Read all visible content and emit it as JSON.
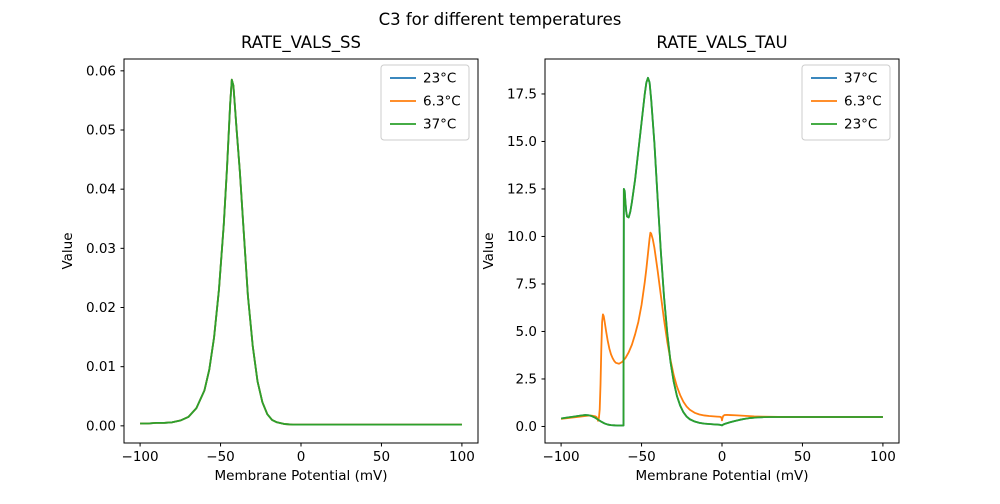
{
  "figure_title": "C3 for different temperatures",
  "colors": {
    "line_blue": "#1f77b4",
    "line_orange": "#ff7f0e",
    "line_green": "#2ca02c",
    "text": "#000000",
    "spine": "#000000",
    "legend_border": "#cccccc",
    "background": "#ffffff"
  },
  "chart_data": [
    {
      "type": "line",
      "title": "RATE_VALS_SS",
      "xlabel": "Membrane Potential (mV)",
      "ylabel": "Value",
      "xlim": [
        -110,
        110
      ],
      "ylim": [
        -0.0029,
        0.062
      ],
      "grid": false,
      "legend_position": "upper right",
      "xticks": [
        {
          "v": -100,
          "label": "−100"
        },
        {
          "v": -50,
          "label": "−50"
        },
        {
          "v": 0,
          "label": "0"
        },
        {
          "v": 50,
          "label": "50"
        },
        {
          "v": 100,
          "label": "100"
        }
      ],
      "yticks": [
        {
          "v": 0.0,
          "label": "0.00"
        },
        {
          "v": 0.01,
          "label": "0.01"
        },
        {
          "v": 0.02,
          "label": "0.02"
        },
        {
          "v": 0.03,
          "label": "0.03"
        },
        {
          "v": 0.04,
          "label": "0.04"
        },
        {
          "v": 0.05,
          "label": "0.05"
        },
        {
          "v": 0.06,
          "label": "0.06"
        }
      ],
      "overlap_note": "All three curves coincide exactly; only the last-drawn series (37°C, green) is visible.",
      "series": [
        {
          "name": "23°C",
          "color": "#1f77b4",
          "same_as": 2
        },
        {
          "name": "6.3°C",
          "color": "#ff7f0e",
          "same_as": 2
        },
        {
          "name": "37°C",
          "color": "#2ca02c",
          "x": [
            -100,
            -95,
            -90,
            -85,
            -80,
            -75,
            -70,
            -65,
            -60,
            -57,
            -54,
            -51,
            -48,
            -46,
            -44,
            -43,
            -42,
            -40,
            -38,
            -36,
            -33,
            -30,
            -27,
            -24,
            -21,
            -18,
            -15,
            -10,
            -5,
            0,
            10,
            25,
            50,
            75,
            100
          ],
          "y": [
            0.0004,
            0.0004,
            0.0005,
            0.0005,
            0.0006,
            0.0009,
            0.0015,
            0.003,
            0.006,
            0.0095,
            0.015,
            0.023,
            0.034,
            0.0435,
            0.0545,
            0.0585,
            0.0575,
            0.05,
            0.043,
            0.0345,
            0.022,
            0.0135,
            0.0075,
            0.004,
            0.002,
            0.001,
            0.0006,
            0.0003,
            0.0002,
            0.0002,
            0.0002,
            0.0002,
            0.0002,
            0.0002,
            0.0002
          ]
        }
      ]
    },
    {
      "type": "line",
      "title": "RATE_VALS_TAU",
      "xlabel": "Membrane Potential (mV)",
      "ylabel": "Value",
      "xlim": [
        -110,
        110
      ],
      "ylim": [
        -0.87,
        19.34
      ],
      "grid": false,
      "legend_position": "upper right",
      "xticks": [
        {
          "v": -100,
          "label": "−100"
        },
        {
          "v": -50,
          "label": "−50"
        },
        {
          "v": 0,
          "label": "0"
        },
        {
          "v": 50,
          "label": "50"
        },
        {
          "v": 100,
          "label": "100"
        }
      ],
      "yticks": [
        {
          "v": 0.0,
          "label": "0.0"
        },
        {
          "v": 2.5,
          "label": "2.5"
        },
        {
          "v": 5.0,
          "label": "5.0"
        },
        {
          "v": 7.5,
          "label": "7.5"
        },
        {
          "v": 10.0,
          "label": "10.0"
        },
        {
          "v": 12.5,
          "label": "12.5"
        },
        {
          "v": 15.0,
          "label": "15.0"
        },
        {
          "v": 17.5,
          "label": "17.5"
        }
      ],
      "overlap_note": "The 37°C (blue) curve coincides exactly with the 23°C (green) curve and is hidden beneath it.",
      "series": [
        {
          "name": "37°C",
          "color": "#1f77b4",
          "same_as": 2
        },
        {
          "name": "6.3°C",
          "color": "#ff7f0e",
          "x": [
            -100,
            -96,
            -92,
            -88,
            -85,
            -83,
            -81,
            -79,
            -78,
            -77.5,
            -77,
            -76.5,
            -76,
            -75.5,
            -75,
            -74.5,
            -74,
            -73.5,
            -73,
            -72,
            -71,
            -70,
            -69,
            -68,
            -67,
            -66,
            -64,
            -62,
            -60,
            -58,
            -56,
            -54,
            -52,
            -50,
            -48,
            -47,
            -46,
            -45,
            -44.5,
            -44,
            -43,
            -42,
            -40,
            -38,
            -36,
            -34,
            -32,
            -30,
            -28,
            -26,
            -24,
            -22,
            -20,
            -17,
            -14,
            -11,
            -8,
            -5,
            -3,
            -1.5,
            -0.7,
            -0.2,
            0,
            0.3,
            0.8,
            1.5,
            3,
            5,
            8,
            12,
            16,
            20,
            25,
            30,
            40,
            60,
            80,
            100
          ],
          "y": [
            0.4,
            0.44,
            0.48,
            0.52,
            0.55,
            0.57,
            0.57,
            0.54,
            0.5,
            0.42,
            0.3,
            0.45,
            0.9,
            2.2,
            4.1,
            5.5,
            5.9,
            5.8,
            5.55,
            5.0,
            4.5,
            4.1,
            3.8,
            3.6,
            3.45,
            3.35,
            3.3,
            3.4,
            3.6,
            3.9,
            4.3,
            4.85,
            5.5,
            6.4,
            7.6,
            8.3,
            9.1,
            9.9,
            10.2,
            10.15,
            9.85,
            9.4,
            8.2,
            6.9,
            5.6,
            4.45,
            3.5,
            2.7,
            2.1,
            1.65,
            1.3,
            1.05,
            0.88,
            0.72,
            0.63,
            0.58,
            0.55,
            0.53,
            0.52,
            0.51,
            0.5,
            0.42,
            0.32,
            0.45,
            0.56,
            0.6,
            0.61,
            0.6,
            0.59,
            0.57,
            0.55,
            0.53,
            0.52,
            0.51,
            0.5,
            0.5,
            0.5,
            0.5
          ]
        },
        {
          "name": "23°C",
          "color": "#2ca02c",
          "x": [
            -100,
            -96,
            -92,
            -88,
            -85,
            -83,
            -81,
            -79,
            -77,
            -75,
            -73,
            -71,
            -69,
            -67,
            -65,
            -63,
            -61.5,
            -61.2,
            -61,
            -60.5,
            -60,
            -59.5,
            -59,
            -58,
            -57,
            -56,
            -54,
            -52,
            -50,
            -48,
            -47,
            -46,
            -45,
            -44,
            -42,
            -40,
            -38,
            -36,
            -34,
            -32,
            -30,
            -28,
            -26,
            -24,
            -22,
            -20,
            -17,
            -14,
            -11,
            -8,
            -5,
            -3,
            -1.5,
            -0.5,
            0,
            0.5,
            1.5,
            3,
            5,
            8,
            11,
            14,
            18,
            22,
            26,
            30,
            40,
            60,
            80,
            100
          ],
          "y": [
            0.42,
            0.47,
            0.52,
            0.57,
            0.6,
            0.59,
            0.55,
            0.47,
            0.36,
            0.25,
            0.16,
            0.1,
            0.07,
            0.06,
            0.05,
            0.05,
            0.05,
            0.05,
            12.5,
            12.4,
            11.8,
            11.3,
            11.05,
            11.0,
            11.3,
            11.8,
            13.0,
            14.5,
            16.0,
            17.5,
            18.1,
            18.35,
            18.1,
            17.2,
            14.9,
            12.0,
            9.2,
            6.8,
            4.9,
            3.4,
            2.35,
            1.6,
            1.1,
            0.75,
            0.52,
            0.38,
            0.26,
            0.19,
            0.15,
            0.13,
            0.11,
            0.1,
            0.09,
            0.07,
            0.06,
            0.09,
            0.13,
            0.17,
            0.22,
            0.29,
            0.35,
            0.4,
            0.45,
            0.48,
            0.49,
            0.5,
            0.5,
            0.5,
            0.5,
            0.5
          ]
        }
      ]
    }
  ]
}
